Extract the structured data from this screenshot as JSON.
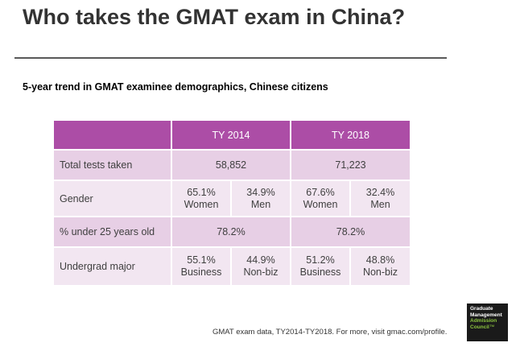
{
  "slide": {
    "title": "Who takes the GMAT exam in China?",
    "subtitle": "5-year trend in GMAT examinee demographics, Chinese citizens",
    "source": "GMAT exam data, TY2014-TY2018. For more, visit gmac.com/profile."
  },
  "table": {
    "headers": [
      "",
      "TY 2014",
      "TY 2018"
    ],
    "rows": {
      "total": {
        "label": "Total tests taken",
        "y2014": "58,852",
        "y2018": "71,223"
      },
      "gender": {
        "label": "Gender",
        "y2014": [
          {
            "pct": "65.1%",
            "cat": "Women"
          },
          {
            "pct": "34.9%",
            "cat": "Men"
          }
        ],
        "y2018": [
          {
            "pct": "67.6%",
            "cat": "Women"
          },
          {
            "pct": "32.4%",
            "cat": "Men"
          }
        ]
      },
      "under25": {
        "label": "% under 25 years old",
        "y2014": "78.2%",
        "y2018": "78.2%"
      },
      "major": {
        "label": "Undergrad major",
        "y2014": [
          {
            "pct": "55.1%",
            "cat": "Business"
          },
          {
            "pct": "44.9%",
            "cat": "Non-biz"
          }
        ],
        "y2018": [
          {
            "pct": "51.2%",
            "cat": "Business"
          },
          {
            "pct": "48.8%",
            "cat": "Non-biz"
          }
        ]
      }
    }
  },
  "logo": {
    "line1": "Graduate",
    "line2": "Management",
    "line3": "Admission",
    "line4": "Council",
    "trademark": "™"
  },
  "colors": {
    "header_bg": "#ac4da6",
    "row_dark": "#e7cfe5",
    "row_light": "#f2e6f1"
  }
}
